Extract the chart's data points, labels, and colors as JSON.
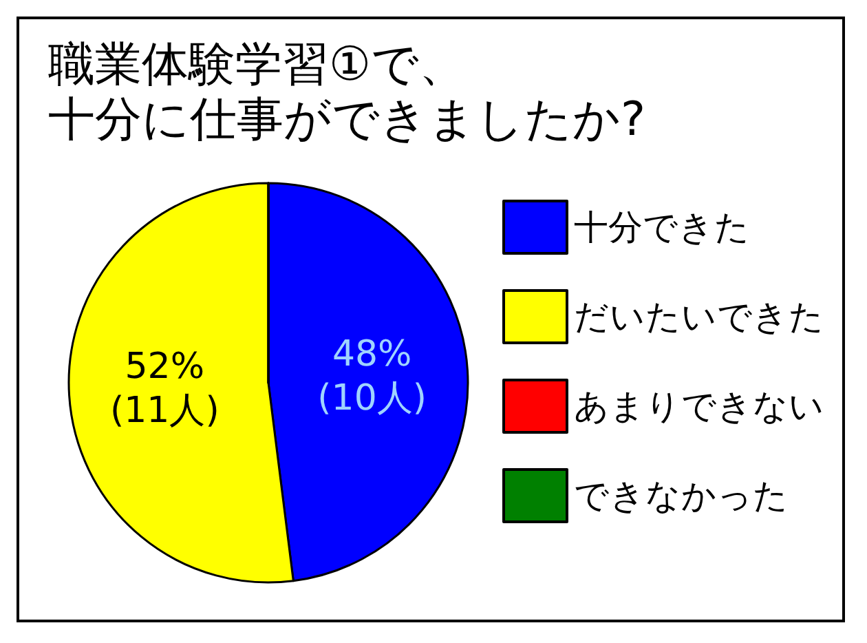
{
  "chart_data": {
    "type": "pie",
    "title": "職業体験学習①で、十分に仕事ができましたか?",
    "categories": [
      "十分できた",
      "だいたいできた",
      "あまりできない",
      "できなかった"
    ],
    "values": [
      48,
      52,
      0,
      0
    ],
    "colors": [
      "#0000ff",
      "#ffff00",
      "#ff0000",
      "#008000"
    ],
    "value_labels": [
      "48%\n(10人)",
      "52%\n(11人)",
      null,
      null
    ],
    "legend": "right"
  }
}
